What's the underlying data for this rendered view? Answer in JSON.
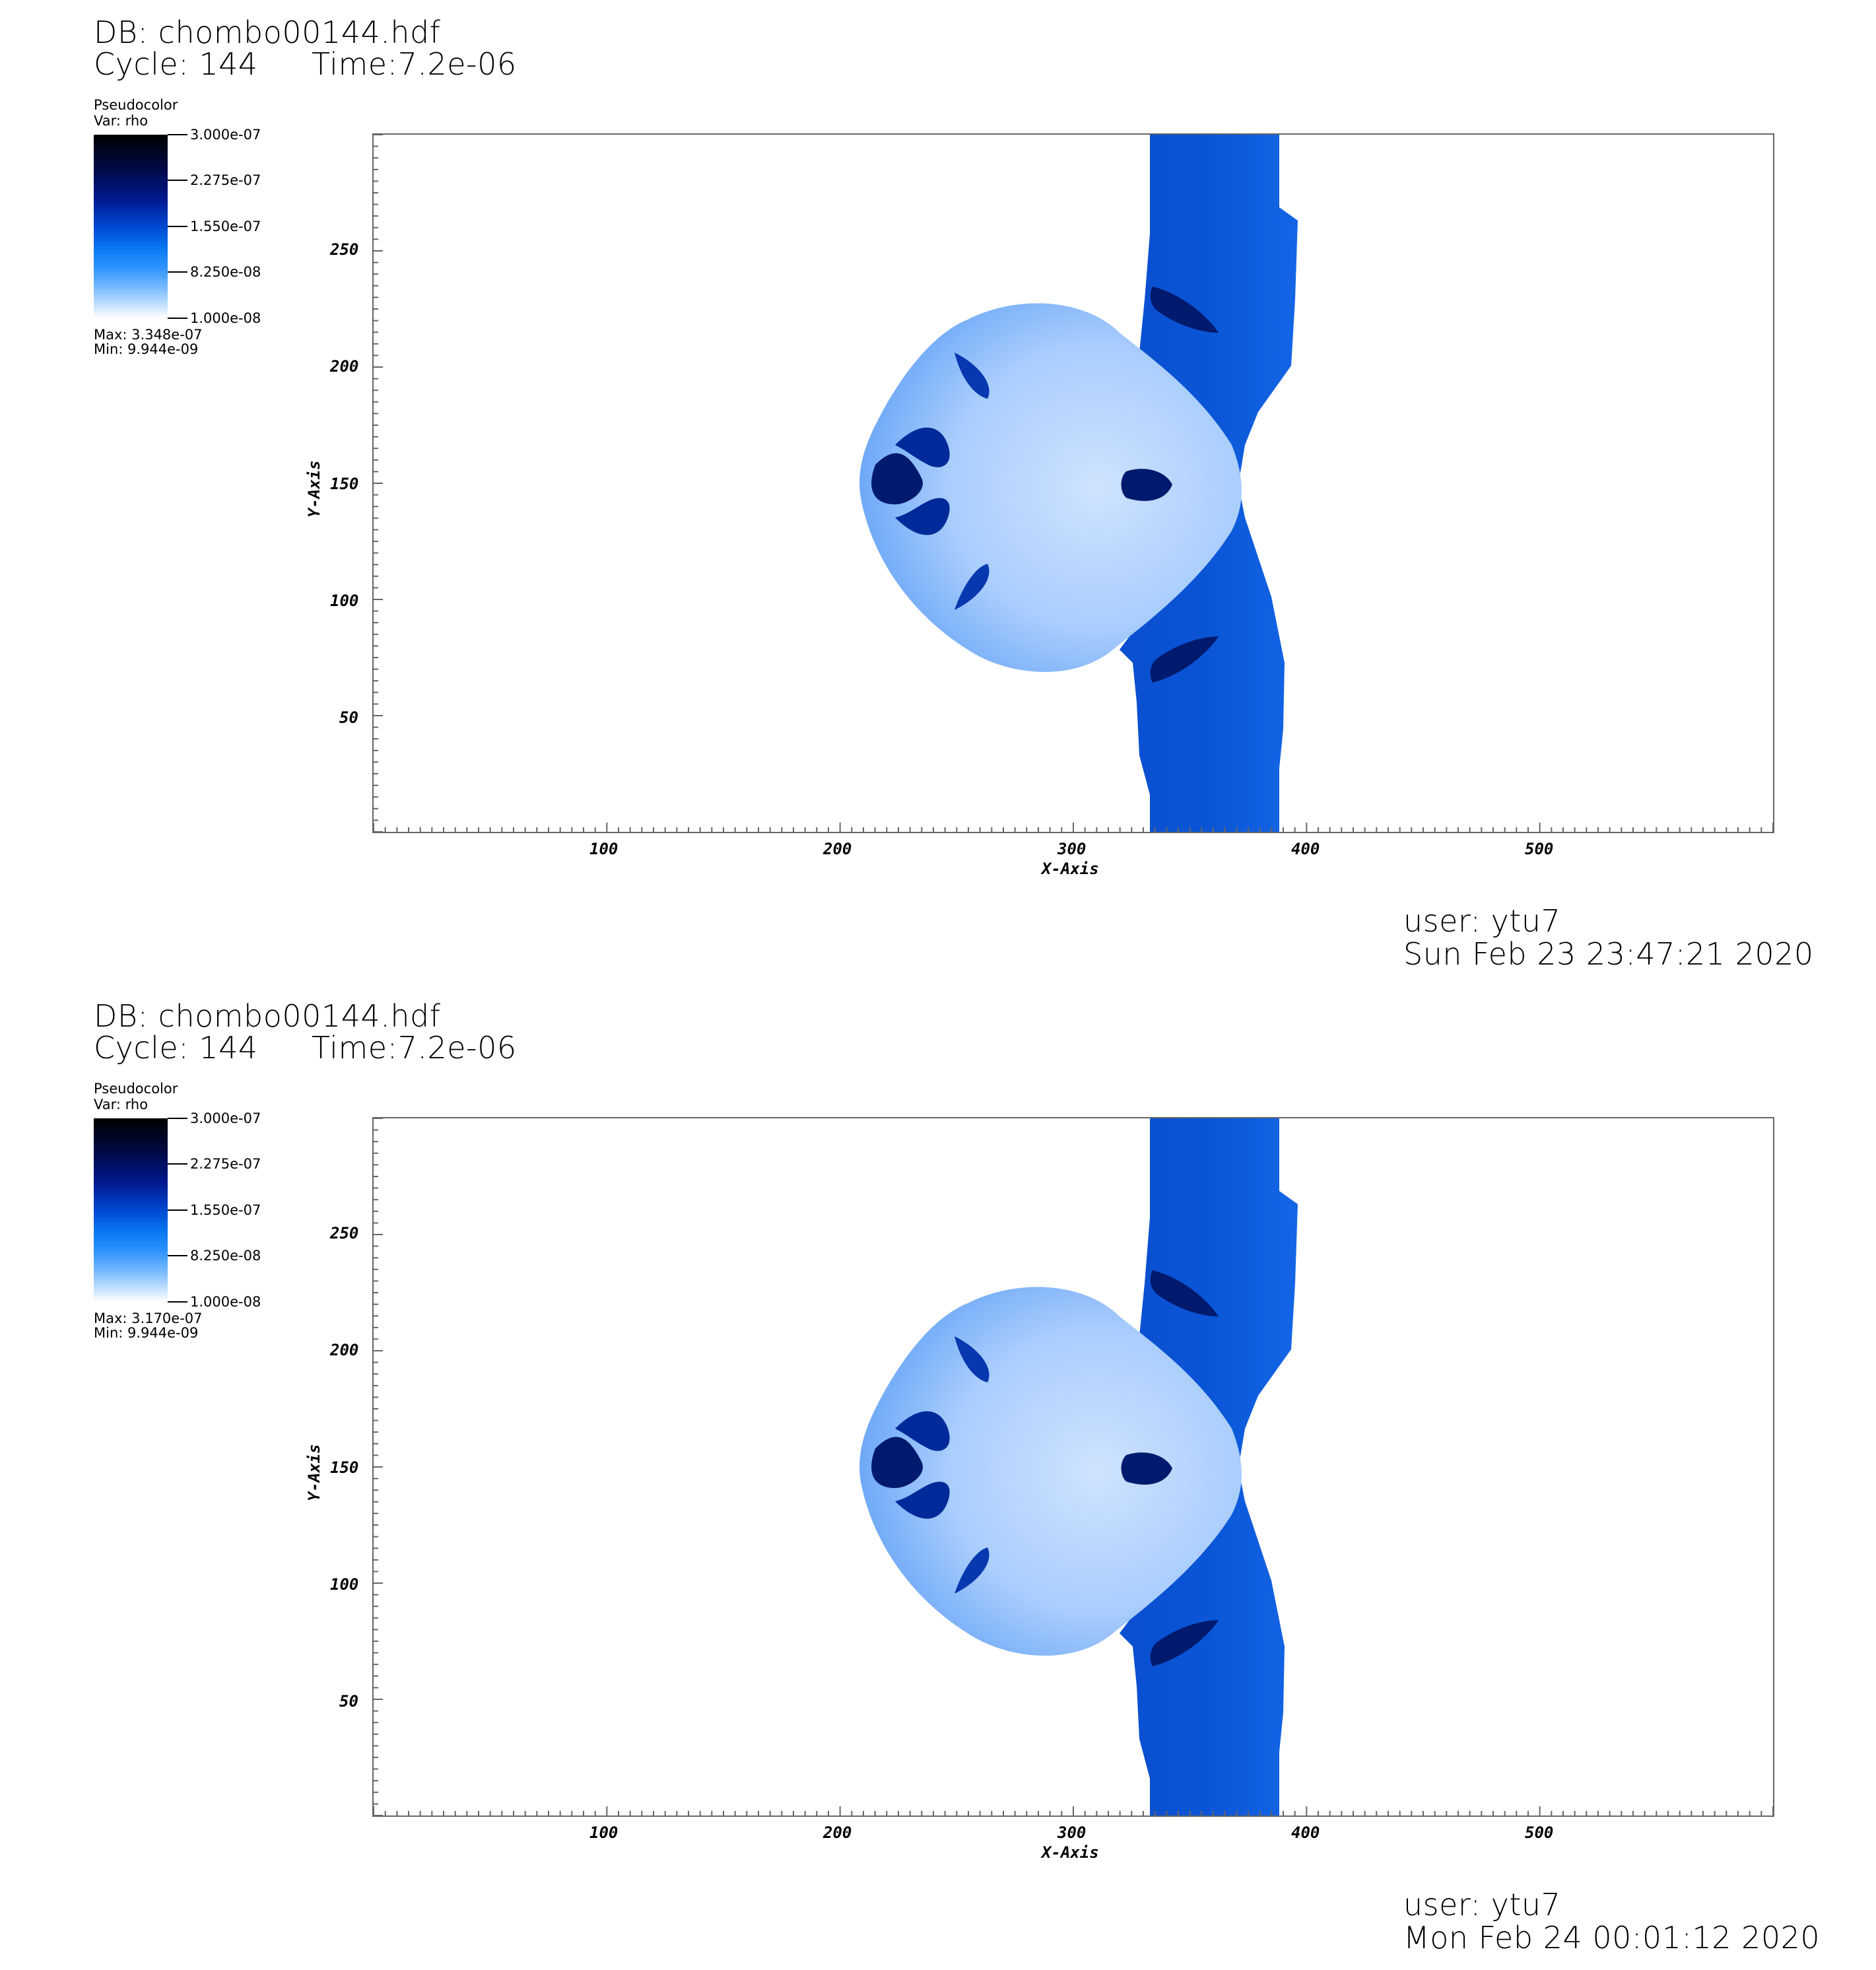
{
  "panels": [
    {
      "db": "DB: chombo00144.hdf",
      "cycle": "Cycle: 144",
      "time": "Time:7.2e-06",
      "legend": {
        "title": "Pseudocolor",
        "var": "Var: rho",
        "ticks": [
          "3.000e-07",
          "2.275e-07",
          "1.550e-07",
          "8.250e-08",
          "1.000e-08"
        ],
        "max": "Max:  3.348e-07",
        "min": "Min:  9.944e-09"
      },
      "x_axis": {
        "title": "X-Axis",
        "ticks": [
          "100",
          "200",
          "300",
          "400",
          "500"
        ]
      },
      "y_axis": {
        "title": "Y-Axis",
        "ticks": [
          "250",
          "200",
          "150",
          "100",
          "50"
        ]
      },
      "user": "user: ytu7",
      "date": "Sun Feb 23 23:47:21 2020"
    },
    {
      "db": "DB: chombo00144.hdf",
      "cycle": "Cycle: 144",
      "time": "Time:7.2e-06",
      "legend": {
        "title": "Pseudocolor",
        "var": "Var: rho",
        "ticks": [
          "3.000e-07",
          "2.275e-07",
          "1.550e-07",
          "8.250e-08",
          "1.000e-08"
        ],
        "max": "Max:  3.170e-07",
        "min": "Min:  9.944e-09"
      },
      "x_axis": {
        "title": "X-Axis",
        "ticks": [
          "100",
          "200",
          "300",
          "400",
          "500"
        ]
      },
      "y_axis": {
        "title": "Y-Axis",
        "ticks": [
          "250",
          "200",
          "150",
          "100",
          "50"
        ]
      },
      "user": "user: ytu7",
      "date": "Mon Feb 24 00:01:12 2020"
    }
  ],
  "colors": {
    "slab": "#0a55d6",
    "bubble_light": "#cfe3ff",
    "bubble_mid": "#5a9cf5",
    "dark": "#001a6e",
    "frame": "#666666"
  }
}
